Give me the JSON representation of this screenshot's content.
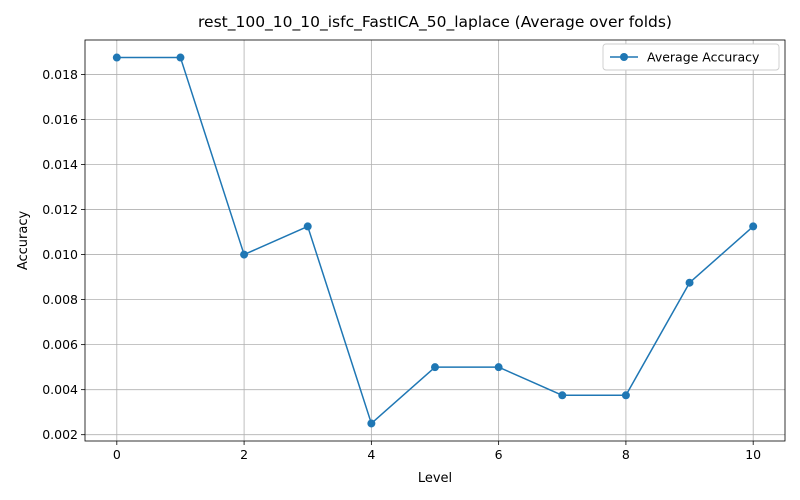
{
  "chart_data": {
    "type": "line",
    "title": "rest_100_10_10_isfc_FastICA_50_laplace (Average over folds)",
    "xlabel": "Level",
    "ylabel": "Accuracy",
    "xlim": [
      -0.5,
      10.5
    ],
    "ylim": [
      0.00172,
      0.01953
    ],
    "xticks": [
      0,
      2,
      4,
      6,
      8,
      10
    ],
    "xtick_labels": [
      "0",
      "2",
      "4",
      "6",
      "8",
      "10"
    ],
    "yticks": [
      0.002,
      0.004,
      0.006,
      0.008,
      0.01,
      0.012,
      0.014,
      0.016,
      0.018
    ],
    "ytick_labels": [
      "0.002",
      "0.004",
      "0.006",
      "0.008",
      "0.010",
      "0.012",
      "0.014",
      "0.016",
      "0.018"
    ],
    "grid": true,
    "legend_position": "top-right",
    "series": [
      {
        "name": "Average Accuracy",
        "color": "#1f77b4",
        "marker": "circle",
        "x": [
          0,
          1,
          2,
          3,
          4,
          5,
          6,
          7,
          8,
          9,
          10
        ],
        "y": [
          0.01875,
          0.01875,
          0.01,
          0.01125,
          0.0025,
          0.005,
          0.005,
          0.00375,
          0.00375,
          0.00875,
          0.01125
        ]
      }
    ]
  }
}
